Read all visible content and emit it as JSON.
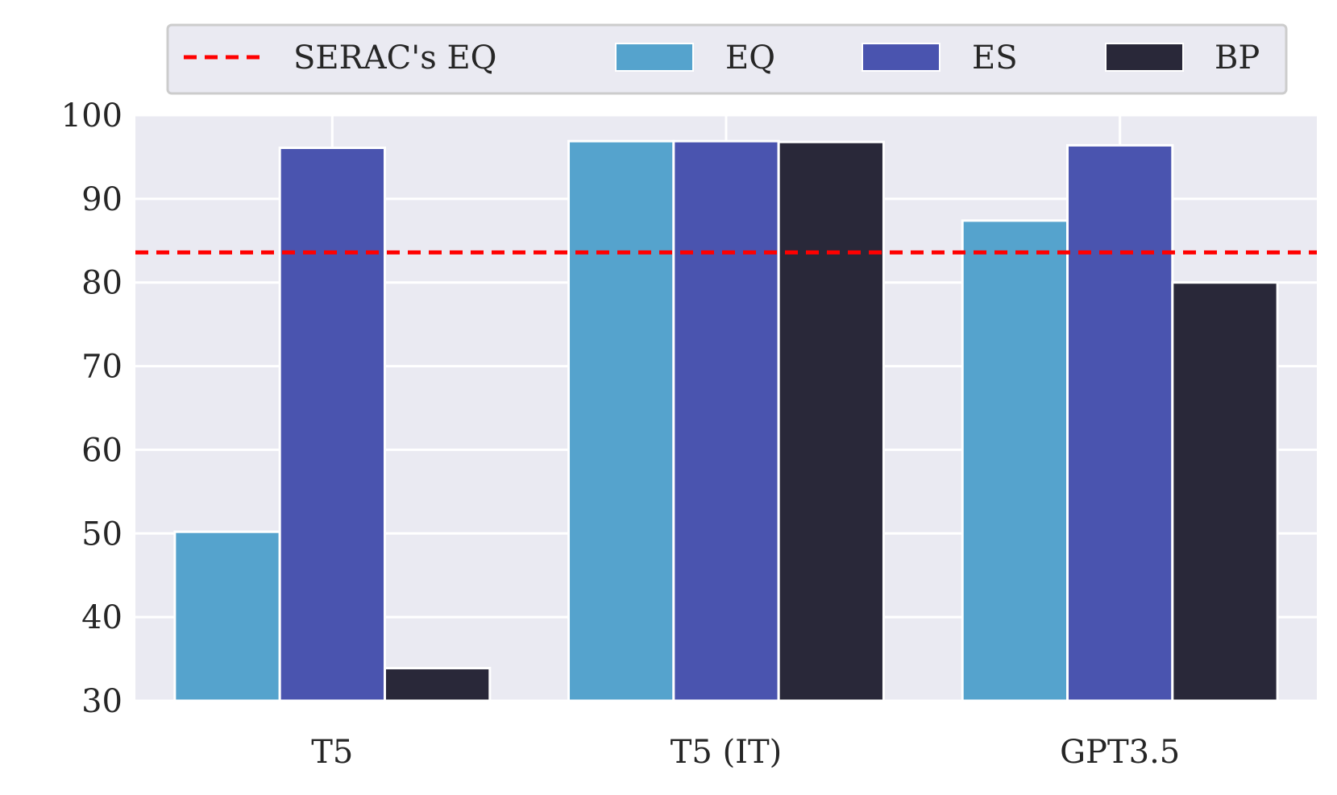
{
  "chart_data": {
    "type": "bar",
    "categories": [
      "T5",
      "T5 (IT)",
      "GPT3.5"
    ],
    "series": [
      {
        "name": "EQ",
        "color": "#55a3cd",
        "values": [
          50.2,
          96.9,
          87.4
        ]
      },
      {
        "name": "ES",
        "color": "#4a54af",
        "values": [
          96.1,
          96.9,
          96.4
        ]
      },
      {
        "name": "BP",
        "color": "#292839",
        "values": [
          33.9,
          96.8,
          80.0
        ]
      }
    ],
    "reference_line": {
      "name": "SERAC's EQ",
      "value": 83.6,
      "color": "#ff0000",
      "style": "dashed"
    },
    "ylim": [
      30,
      100
    ],
    "yticks": [
      30,
      40,
      50,
      60,
      70,
      80,
      90,
      100
    ],
    "title": "",
    "xlabel": "",
    "ylabel": "",
    "grid": true,
    "legend_position": "top-center"
  }
}
